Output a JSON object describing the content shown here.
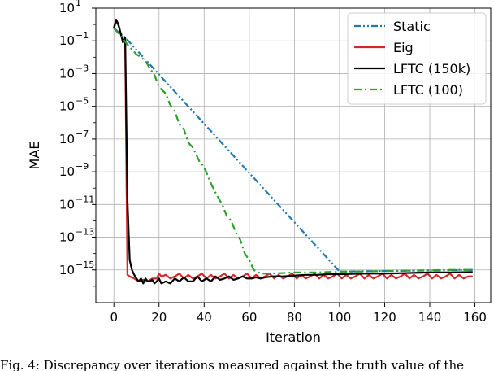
{
  "chart_data": {
    "type": "line",
    "xlabel": "Iteration",
    "ylabel": "MAE",
    "xlim": [
      -8,
      167
    ],
    "ylim": [
      1e-17,
      10
    ],
    "yscale": "log",
    "xticks": [
      0,
      20,
      40,
      60,
      80,
      100,
      120,
      140,
      160
    ],
    "yticks": [
      {
        "base": "10",
        "exp": "1"
      },
      {
        "base": "10",
        "exp": "−1"
      },
      {
        "base": "10",
        "exp": "−3"
      },
      {
        "base": "10",
        "exp": "−5"
      },
      {
        "base": "10",
        "exp": "−7"
      },
      {
        "base": "10",
        "exp": "−9"
      },
      {
        "base": "10",
        "exp": "−11"
      },
      {
        "base": "10",
        "exp": "−13"
      },
      {
        "base": "10",
        "exp": "−15"
      }
    ],
    "grid": true,
    "legend_position": "top-right",
    "series": [
      {
        "name": "Static",
        "color": "#1f77b4",
        "dash": "dashdotdot",
        "points": [
          [
            0,
            0.6
          ],
          [
            5,
            0.16
          ],
          [
            100,
            8e-16
          ],
          [
            159,
            1e-15
          ]
        ]
      },
      {
        "name": "Eig",
        "color": "#d62728",
        "dash": "solid",
        "points": [
          [
            0,
            0.6
          ],
          [
            1,
            1.6
          ],
          [
            2,
            0.9
          ],
          [
            3,
            0.25
          ],
          [
            4,
            0.12
          ],
          [
            5,
            0.08
          ],
          [
            6,
            5e-16
          ],
          [
            7,
            4e-16
          ],
          [
            9,
            3e-16
          ],
          [
            11,
            2e-16
          ],
          [
            13,
            2.5e-16
          ],
          [
            15,
            2e-16
          ],
          [
            17,
            3e-16
          ],
          [
            19,
            3e-16
          ],
          [
            20,
            6e-16
          ],
          [
            21,
            4e-16
          ],
          [
            23,
            5e-16
          ],
          [
            25,
            3e-16
          ],
          [
            27,
            4e-16
          ],
          [
            29,
            6e-16
          ],
          [
            31,
            3e-16
          ],
          [
            33,
            5e-16
          ],
          [
            35,
            3e-16
          ],
          [
            37,
            4e-16
          ],
          [
            39,
            6e-16
          ],
          [
            41,
            3e-16
          ],
          [
            43,
            5e-16
          ],
          [
            45,
            3e-16
          ],
          [
            47,
            4e-16
          ],
          [
            49,
            6e-16
          ],
          [
            51,
            3e-16
          ],
          [
            53,
            5e-16
          ],
          [
            55,
            3e-16
          ],
          [
            57,
            4e-16
          ],
          [
            59,
            6e-16
          ],
          [
            61,
            3e-16
          ],
          [
            63,
            5e-16
          ],
          [
            65,
            3e-16
          ],
          [
            67,
            4e-16
          ],
          [
            69,
            6e-16
          ],
          [
            71,
            3e-16
          ],
          [
            73,
            5e-16
          ],
          [
            75,
            3e-16
          ],
          [
            77,
            4e-16
          ],
          [
            79,
            6e-16
          ],
          [
            81,
            3e-16
          ],
          [
            83,
            5e-16
          ],
          [
            85,
            3e-16
          ],
          [
            87,
            4e-16
          ],
          [
            89,
            6e-16
          ],
          [
            91,
            3e-16
          ],
          [
            93,
            5e-16
          ],
          [
            95,
            3e-16
          ],
          [
            97,
            4e-16
          ],
          [
            99,
            6e-16
          ],
          [
            101,
            3e-16
          ],
          [
            103,
            5e-16
          ],
          [
            105,
            3e-16
          ],
          [
            107,
            4e-16
          ],
          [
            109,
            6e-16
          ],
          [
            111,
            3e-16
          ],
          [
            113,
            5e-16
          ],
          [
            115,
            3e-16
          ],
          [
            117,
            4e-16
          ],
          [
            119,
            6e-16
          ],
          [
            121,
            3e-16
          ],
          [
            123,
            5e-16
          ],
          [
            125,
            3e-16
          ],
          [
            127,
            4e-16
          ],
          [
            129,
            6e-16
          ],
          [
            131,
            3e-16
          ],
          [
            133,
            5e-16
          ],
          [
            135,
            3e-16
          ],
          [
            137,
            4e-16
          ],
          [
            139,
            6e-16
          ],
          [
            141,
            3e-16
          ],
          [
            143,
            5e-16
          ],
          [
            145,
            3e-16
          ],
          [
            147,
            4e-16
          ],
          [
            149,
            6e-16
          ],
          [
            151,
            3e-16
          ],
          [
            153,
            5e-16
          ],
          [
            155,
            3e-16
          ],
          [
            157,
            4e-16
          ],
          [
            159,
            4e-16
          ]
        ]
      },
      {
        "name": "LFTC (150k)",
        "color": "#000000",
        "dash": "solid",
        "points": [
          [
            0,
            0.6
          ],
          [
            1,
            2.0
          ],
          [
            2,
            1.0
          ],
          [
            3,
            0.3
          ],
          [
            4,
            0.08
          ],
          [
            5,
            0.15
          ],
          [
            6,
            2e-11
          ],
          [
            7,
            4e-15
          ],
          [
            8,
            1e-15
          ],
          [
            9,
            5e-16
          ],
          [
            10,
            3e-16
          ],
          [
            11,
            2e-16
          ],
          [
            12,
            3e-16
          ],
          [
            13,
            1.5e-16
          ],
          [
            14,
            3e-16
          ],
          [
            15,
            2e-16
          ],
          [
            16,
            2e-16
          ],
          [
            17,
            2.5e-16
          ],
          [
            18,
            1.5e-16
          ],
          [
            19,
            2e-16
          ],
          [
            20,
            3e-16
          ],
          [
            21,
            1.5e-16
          ],
          [
            23,
            2e-16
          ],
          [
            25,
            1.5e-16
          ],
          [
            27,
            3e-16
          ],
          [
            29,
            2e-16
          ],
          [
            31,
            3.5e-16
          ],
          [
            33,
            2e-16
          ],
          [
            35,
            2e-16
          ],
          [
            37,
            4e-16
          ],
          [
            39,
            2e-16
          ],
          [
            41,
            3e-16
          ],
          [
            43,
            2e-16
          ],
          [
            45,
            4e-16
          ],
          [
            47,
            2.5e-16
          ],
          [
            49,
            3e-16
          ],
          [
            51,
            4e-16
          ],
          [
            53,
            2.5e-16
          ],
          [
            55,
            3e-16
          ],
          [
            57,
            4e-16
          ],
          [
            59,
            3e-16
          ],
          [
            61,
            3e-16
          ],
          [
            63,
            3.5e-16
          ],
          [
            65,
            3e-16
          ],
          [
            67,
            3.5e-16
          ],
          [
            70,
            4e-16
          ],
          [
            75,
            4e-16
          ],
          [
            80,
            4.5e-16
          ],
          [
            85,
            5e-16
          ],
          [
            90,
            5e-16
          ],
          [
            95,
            5.5e-16
          ],
          [
            100,
            5.5e-16
          ],
          [
            110,
            6e-16
          ],
          [
            120,
            6e-16
          ],
          [
            130,
            6.5e-16
          ],
          [
            140,
            7e-16
          ],
          [
            150,
            7e-16
          ],
          [
            159,
            7.5e-16
          ]
        ]
      },
      {
        "name": "LFTC (100)",
        "color": "#2ca02c",
        "dash": "dashdot",
        "points": [
          [
            0,
            0.6
          ],
          [
            3,
            0.2
          ],
          [
            6,
            0.06
          ],
          [
            10,
            0.015
          ],
          [
            12,
            0.01
          ],
          [
            14,
            0.006
          ],
          [
            16,
            0.002
          ],
          [
            18,
            0.0008
          ],
          [
            20,
            0.00015
          ],
          [
            23,
            6e-05
          ],
          [
            25,
            1.2e-05
          ],
          [
            27,
            5e-06
          ],
          [
            29,
            8e-07
          ],
          [
            31,
            4e-07
          ],
          [
            33,
            6e-08
          ],
          [
            35,
            3e-08
          ],
          [
            38,
            4e-09
          ],
          [
            40,
            2e-09
          ],
          [
            42,
            4e-10
          ],
          [
            44,
            1e-10
          ],
          [
            46,
            3e-11
          ],
          [
            48,
            1e-11
          ],
          [
            50,
            2e-12
          ],
          [
            52,
            1e-12
          ],
          [
            54,
            2e-13
          ],
          [
            56,
            7e-14
          ],
          [
            58,
            1e-14
          ],
          [
            60,
            4e-15
          ],
          [
            62,
            1e-15
          ],
          [
            65,
            6e-16
          ],
          [
            70,
            6e-16
          ],
          [
            80,
            7e-16
          ],
          [
            90,
            7e-16
          ],
          [
            100,
            8e-16
          ],
          [
            110,
            8e-16
          ],
          [
            120,
            8.5e-16
          ],
          [
            130,
            9e-16
          ],
          [
            140,
            9.5e-16
          ],
          [
            150,
            1e-15
          ],
          [
            159,
            1e-15
          ]
        ]
      }
    ]
  },
  "caption": "Fig. 4: Discrepancy over iterations measured against the truth value of the"
}
